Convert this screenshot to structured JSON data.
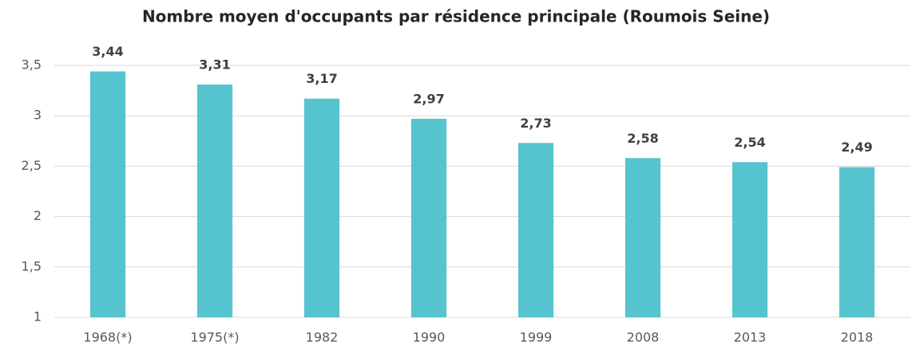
{
  "chart_data": {
    "type": "bar",
    "title": "Nombre moyen d'occupants par résidence principale (Roumois Seine)",
    "categories": [
      "1968(*)",
      "1975(*)",
      "1982",
      "1990",
      "1999",
      "2008",
      "2013",
      "2018"
    ],
    "values": [
      3.44,
      3.31,
      3.17,
      2.97,
      2.73,
      2.58,
      2.54,
      2.49
    ],
    "value_labels": [
      "3,44",
      "3,31",
      "3,17",
      "2,97",
      "2,73",
      "2,58",
      "2,54",
      "2,49"
    ],
    "color": "#56c4cf",
    "ylim": [
      1,
      3.5
    ],
    "yticks": [
      1,
      {
        "value": 1.5,
        "label": "1,5"
      },
      2,
      {
        "value": 2.5,
        "label": "2,5"
      },
      3,
      {
        "value": 3.5,
        "label": "3,5"
      }
    ],
    "grid": true
  }
}
